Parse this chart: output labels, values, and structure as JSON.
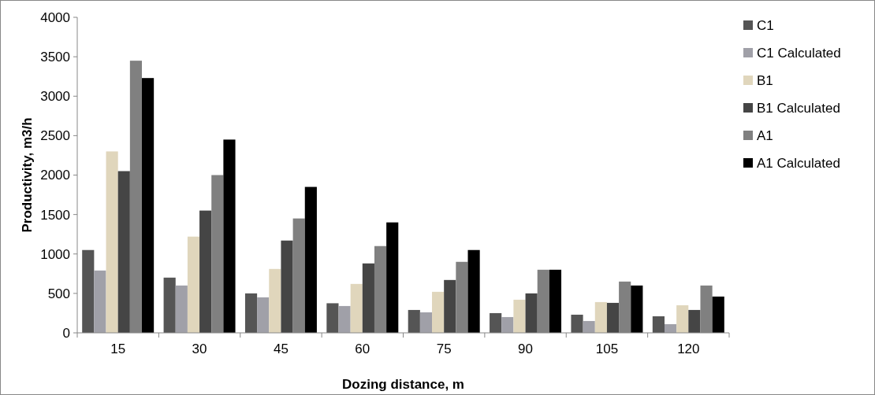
{
  "chart_data": {
    "type": "bar",
    "xlabel": "Dozing distance, m",
    "ylabel": "Productivity, m3/h",
    "categories": [
      "15",
      "30",
      "45",
      "60",
      "75",
      "90",
      "105",
      "120"
    ],
    "series": [
      {
        "name": "C1",
        "color": "#555555",
        "values": [
          1050,
          700,
          500,
          375,
          290,
          250,
          230,
          210
        ]
      },
      {
        "name": "C1 Calculated",
        "color": "#a0a0a8",
        "values": [
          790,
          600,
          450,
          340,
          260,
          200,
          150,
          110
        ]
      },
      {
        "name": "B1",
        "color": "#e0d6bc",
        "values": [
          2300,
          1220,
          810,
          620,
          520,
          420,
          390,
          350
        ]
      },
      {
        "name": "B1 Calculated",
        "color": "#454545",
        "values": [
          2050,
          1550,
          1170,
          880,
          670,
          500,
          380,
          290
        ]
      },
      {
        "name": "A1",
        "color": "#808080",
        "values": [
          3450,
          2000,
          1450,
          1100,
          900,
          800,
          650,
          600
        ]
      },
      {
        "name": "A1 Calculated",
        "color": "#000000",
        "values": [
          3230,
          2450,
          1850,
          1400,
          1050,
          800,
          600,
          460
        ]
      }
    ],
    "ylim": [
      0,
      4000
    ],
    "yticks": [
      0,
      500,
      1000,
      1500,
      2000,
      2500,
      3000,
      3500,
      4000
    ],
    "grid": false,
    "legend": "right"
  }
}
